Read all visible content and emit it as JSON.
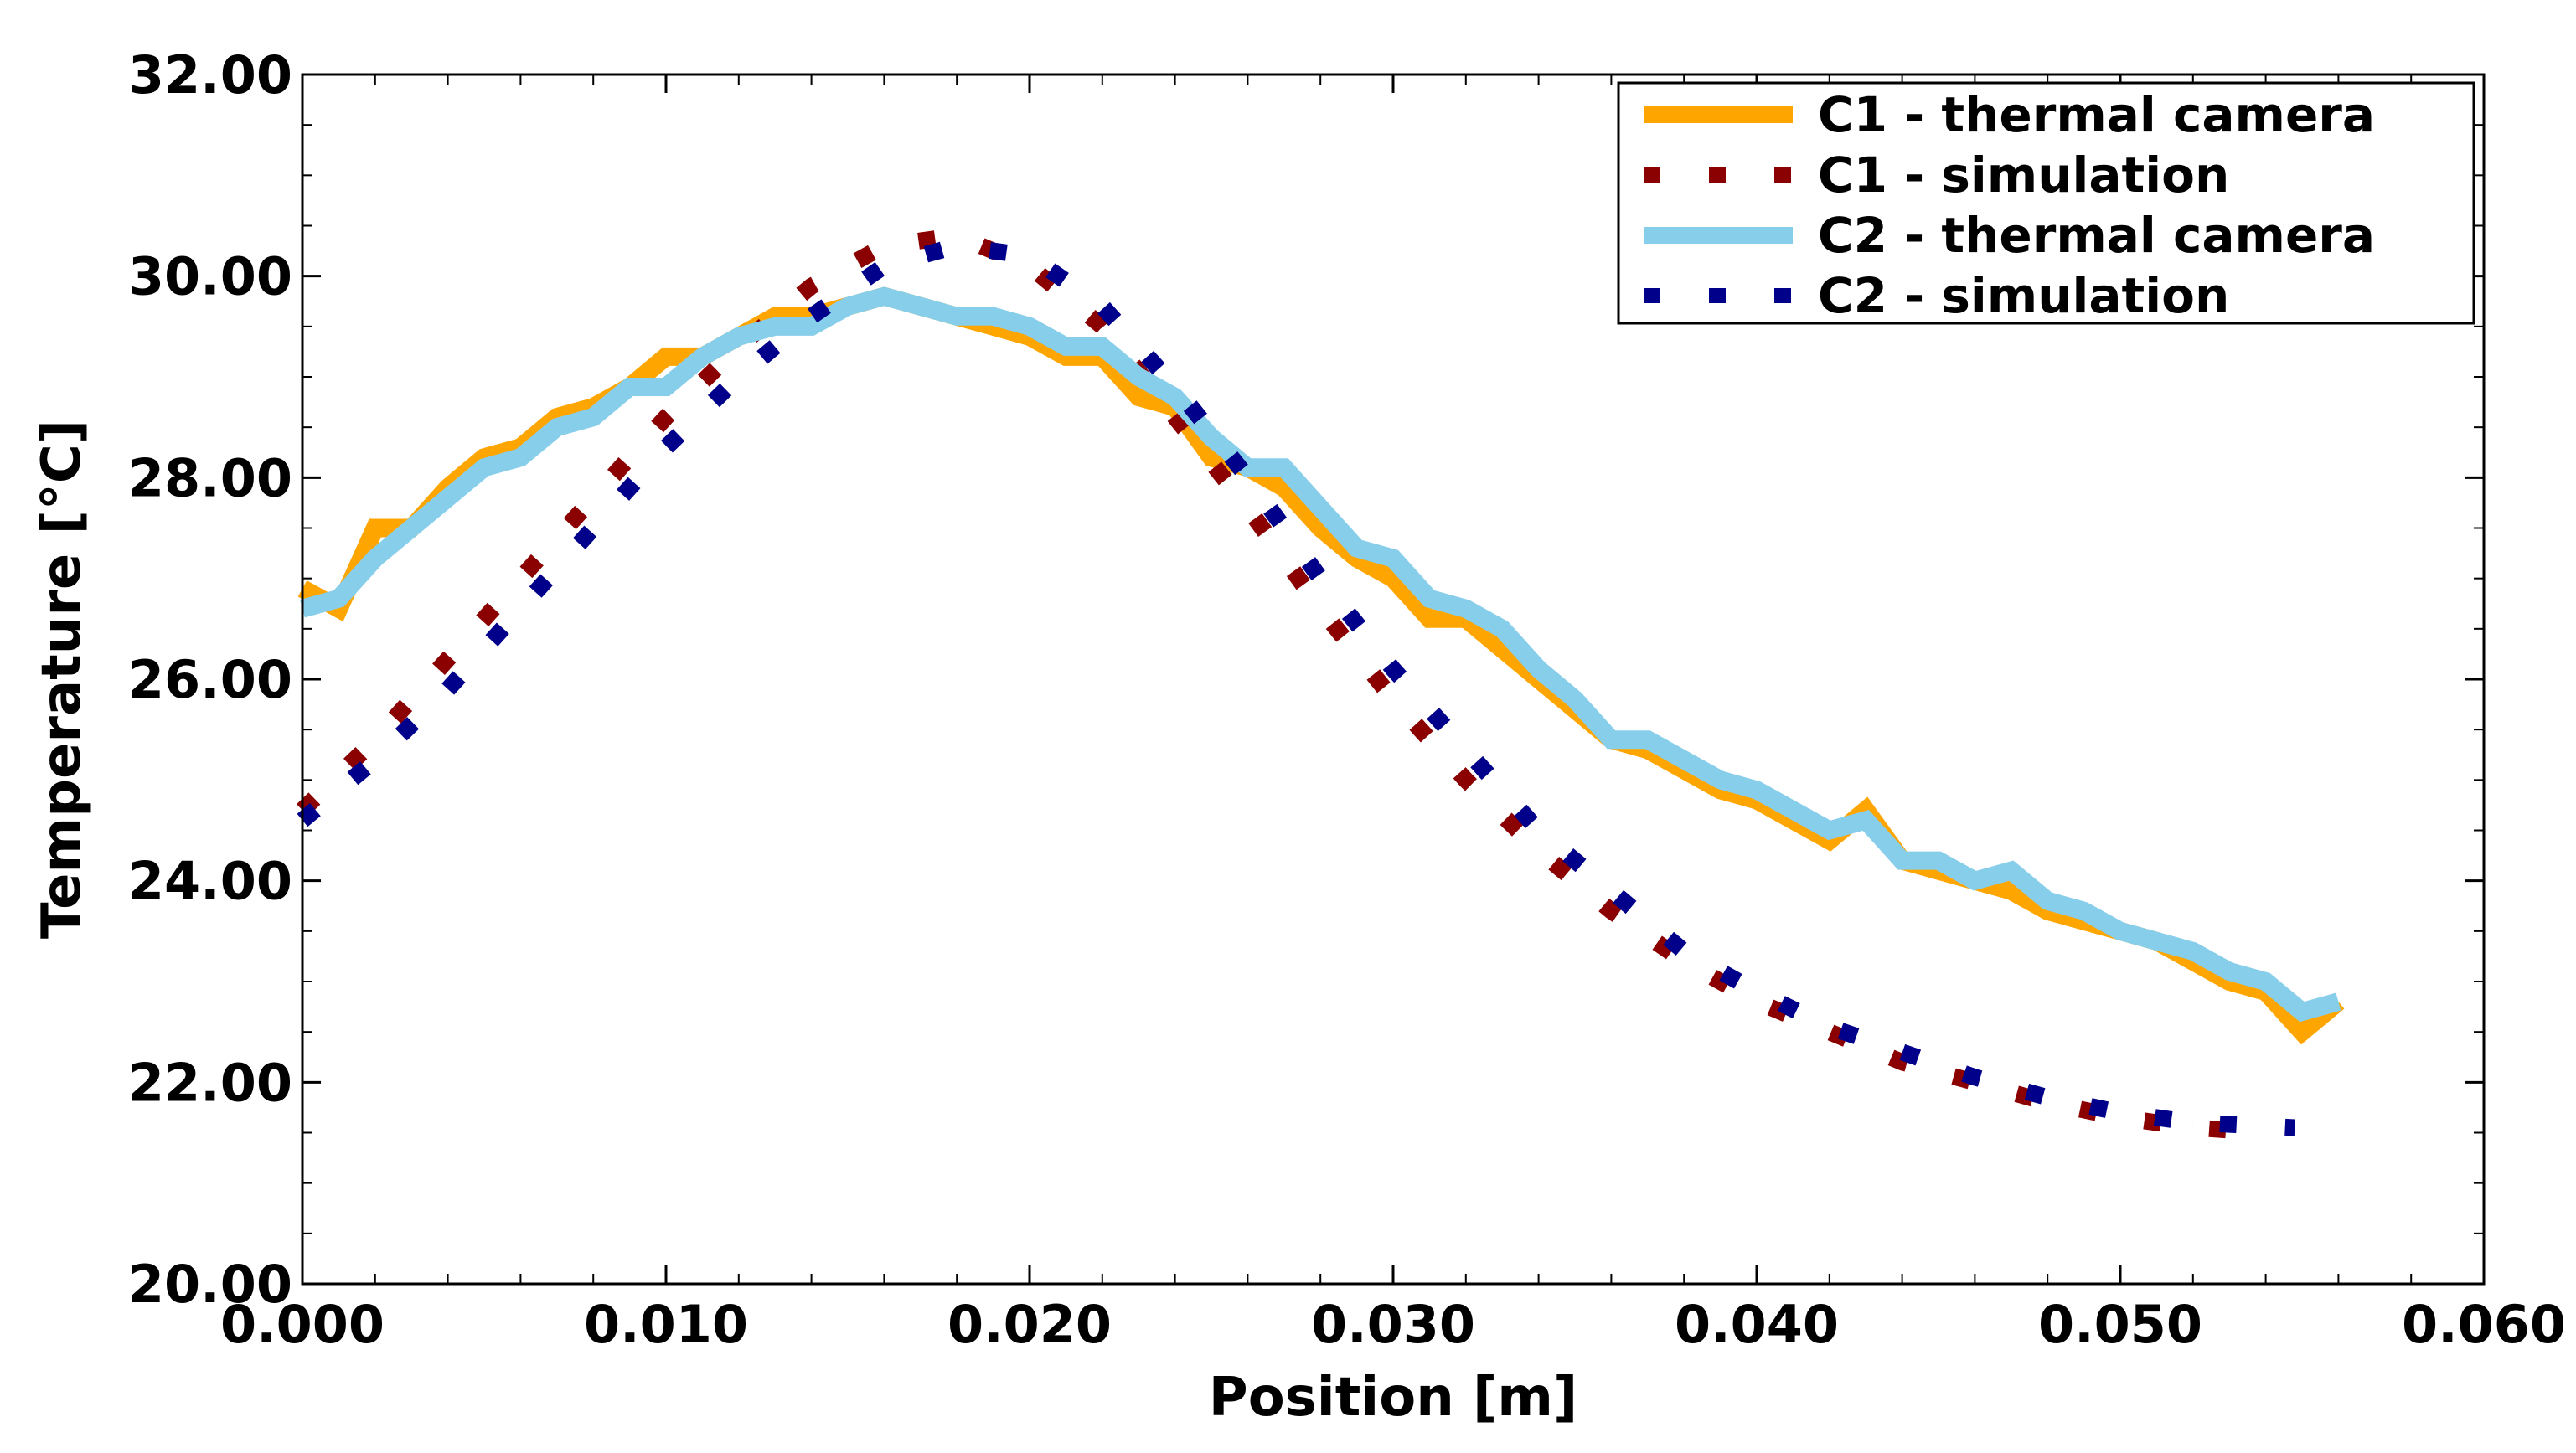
{
  "chart_data": {
    "type": "line",
    "title": "",
    "xlabel": "Position [m]",
    "ylabel": "Temperature [°C]",
    "xlim": [
      0,
      0.06
    ],
    "ylim": [
      20,
      32
    ],
    "x_ticks": [
      "0.000",
      "0.010",
      "0.020",
      "0.030",
      "0.040",
      "0.050",
      "0.060"
    ],
    "y_ticks": [
      "20.00",
      "22.00",
      "24.00",
      "26.00",
      "28.00",
      "30.00",
      "32.00"
    ],
    "grid": false,
    "legend_position": "top-right",
    "series": [
      {
        "name": "C1 - thermal camera",
        "color": "#FFA500",
        "style": "solid",
        "x": [
          0,
          0.001,
          0.002,
          0.003,
          0.004,
          0.005,
          0.006,
          0.007,
          0.008,
          0.009,
          0.01,
          0.011,
          0.012,
          0.013,
          0.014,
          0.015,
          0.016,
          0.017,
          0.018,
          0.019,
          0.02,
          0.021,
          0.022,
          0.023,
          0.024,
          0.025,
          0.026,
          0.027,
          0.028,
          0.029,
          0.03,
          0.031,
          0.032,
          0.033,
          0.034,
          0.035,
          0.036,
          0.037,
          0.038,
          0.039,
          0.04,
          0.041,
          0.042,
          0.043,
          0.044,
          0.045,
          0.046,
          0.047,
          0.048,
          0.049,
          0.05,
          0.051,
          0.052,
          0.053,
          0.054,
          0.055,
          0.056
        ],
        "y": [
          26.9,
          26.7,
          27.5,
          27.5,
          27.9,
          28.2,
          28.3,
          28.6,
          28.7,
          28.9,
          29.2,
          29.2,
          29.4,
          29.6,
          29.6,
          29.7,
          29.8,
          29.7,
          29.6,
          29.5,
          29.4,
          29.2,
          29.2,
          28.8,
          28.7,
          28.2,
          28.1,
          27.9,
          27.5,
          27.2,
          27.0,
          26.6,
          26.6,
          26.3,
          26.0,
          25.7,
          25.4,
          25.3,
          25.1,
          24.9,
          24.8,
          24.6,
          24.4,
          24.7,
          24.2,
          24.1,
          24.0,
          23.9,
          23.7,
          23.6,
          23.5,
          23.4,
          23.2,
          23.0,
          22.9,
          22.5,
          22.8
        ]
      },
      {
        "name": "C1 - simulation",
        "color": "#8B0000",
        "style": "dotted",
        "x": [
          0,
          0.002,
          0.004,
          0.006,
          0.008,
          0.01,
          0.012,
          0.014,
          0.016,
          0.018,
          0.02,
          0.022,
          0.024,
          0.026,
          0.028,
          0.03,
          0.032,
          0.034,
          0.036,
          0.038,
          0.04,
          0.042,
          0.044,
          0.046,
          0.048,
          0.05,
          0.052,
          0.054
        ],
        "y": [
          24.7,
          25.4,
          26.2,
          27.0,
          27.8,
          28.6,
          29.3,
          29.9,
          30.3,
          30.4,
          30.1,
          29.5,
          28.6,
          27.7,
          26.7,
          25.8,
          25.0,
          24.3,
          23.7,
          23.2,
          22.8,
          22.5,
          22.2,
          22.0,
          21.8,
          21.65,
          21.55,
          21.5
        ]
      },
      {
        "name": "C2 - thermal camera",
        "color": "#87CEEB",
        "style": "solid",
        "x": [
          0,
          0.001,
          0.002,
          0.003,
          0.004,
          0.005,
          0.006,
          0.007,
          0.008,
          0.009,
          0.01,
          0.011,
          0.012,
          0.013,
          0.014,
          0.015,
          0.016,
          0.017,
          0.018,
          0.019,
          0.02,
          0.021,
          0.022,
          0.023,
          0.024,
          0.025,
          0.026,
          0.027,
          0.028,
          0.029,
          0.03,
          0.031,
          0.032,
          0.033,
          0.034,
          0.035,
          0.036,
          0.037,
          0.038,
          0.039,
          0.04,
          0.041,
          0.042,
          0.043,
          0.044,
          0.045,
          0.046,
          0.047,
          0.048,
          0.049,
          0.05,
          0.051,
          0.052,
          0.053,
          0.054,
          0.055,
          0.056
        ],
        "y": [
          26.7,
          26.8,
          27.2,
          27.5,
          27.8,
          28.1,
          28.2,
          28.5,
          28.6,
          28.9,
          28.9,
          29.2,
          29.4,
          29.5,
          29.5,
          29.7,
          29.8,
          29.7,
          29.6,
          29.6,
          29.5,
          29.3,
          29.3,
          29.0,
          28.8,
          28.4,
          28.1,
          28.1,
          27.7,
          27.3,
          27.2,
          26.8,
          26.7,
          26.5,
          26.1,
          25.8,
          25.4,
          25.4,
          25.2,
          25.0,
          24.9,
          24.7,
          24.5,
          24.6,
          24.2,
          24.2,
          24.0,
          24.1,
          23.8,
          23.7,
          23.5,
          23.4,
          23.3,
          23.1,
          23.0,
          22.7,
          22.8
        ]
      },
      {
        "name": "C2 - simulation",
        "color": "#00008B",
        "style": "dotted",
        "x": [
          0,
          0.002,
          0.004,
          0.006,
          0.008,
          0.01,
          0.012,
          0.014,
          0.016,
          0.018,
          0.02,
          0.022,
          0.024,
          0.026,
          0.028,
          0.03,
          0.032,
          0.034,
          0.036,
          0.038,
          0.04,
          0.042,
          0.044,
          0.046,
          0.048,
          0.05,
          0.052,
          0.0548
        ],
        "y": [
          24.6,
          25.2,
          25.9,
          26.7,
          27.5,
          28.3,
          29.0,
          29.6,
          30.1,
          30.3,
          30.2,
          29.7,
          28.9,
          28.0,
          27.0,
          26.1,
          25.3,
          24.5,
          23.9,
          23.3,
          22.9,
          22.55,
          22.3,
          22.05,
          21.85,
          21.7,
          21.6,
          21.55
        ]
      }
    ]
  }
}
